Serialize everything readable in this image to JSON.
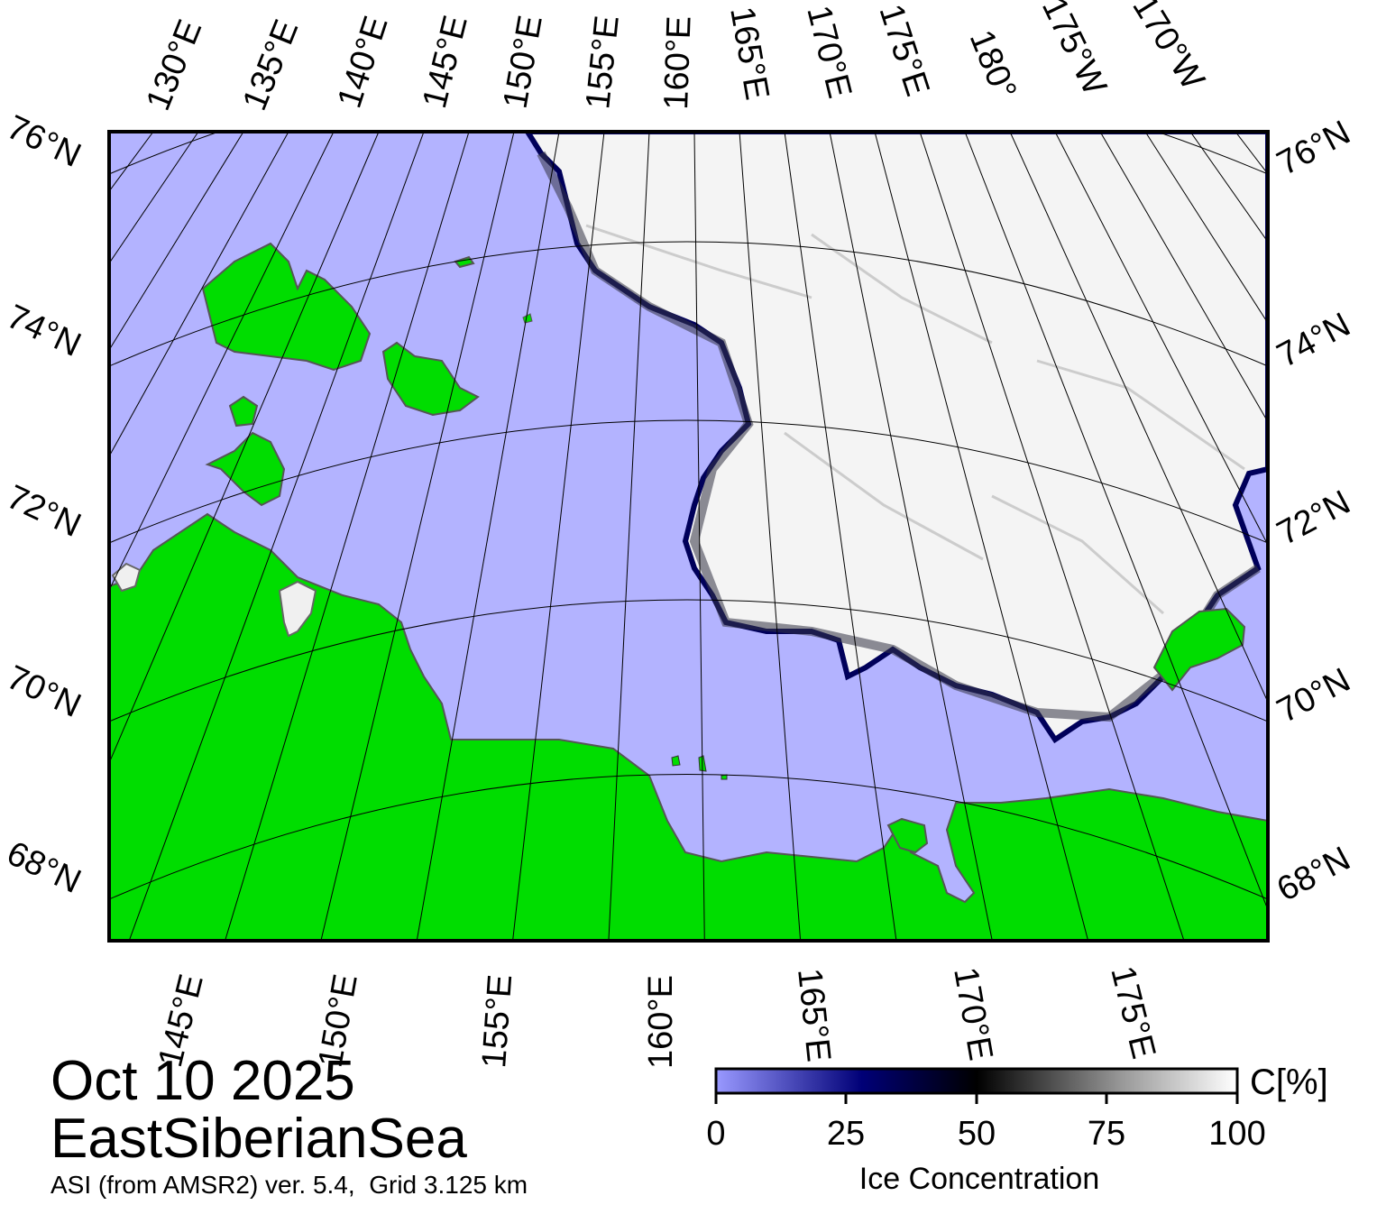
{
  "map": {
    "projection_labels": {
      "top": [
        "130°E",
        "135°E",
        "140°E",
        "145°E",
        "150°E",
        "155°E",
        "160°E",
        "165°E",
        "170°E",
        "175°E",
        "180°",
        "175°W",
        "170°W"
      ],
      "bottom": [
        "145°E",
        "150°E",
        "155°E",
        "160°E",
        "165°E",
        "170°E",
        "175°E"
      ],
      "left": [
        "76°N",
        "74°N",
        "72°N",
        "70°N",
        "68°N"
      ],
      "right": [
        "76°N",
        "74°N",
        "72°N",
        "70°N",
        "68°N"
      ]
    },
    "colors": {
      "ocean": "#b3b3ff",
      "land": "#00dd00",
      "coast": "#666666",
      "ice_high": "#ffffff",
      "ice_low": "#000066"
    }
  },
  "caption": {
    "date": "Oct 10 2025",
    "region": "EastSiberianSea",
    "source": "ASI (from AMSR2) ver. 5.4,  Grid 3.125 km"
  },
  "colorbar": {
    "ticks": [
      "0",
      "25",
      "50",
      "75",
      "100"
    ],
    "tick_values": [
      0,
      25,
      50,
      75,
      100
    ],
    "unit": "C[%]",
    "title": "Ice Concentration",
    "stops": [
      "#8080ff",
      "#000080",
      "#000000",
      "#808080",
      "#ffffff"
    ]
  }
}
